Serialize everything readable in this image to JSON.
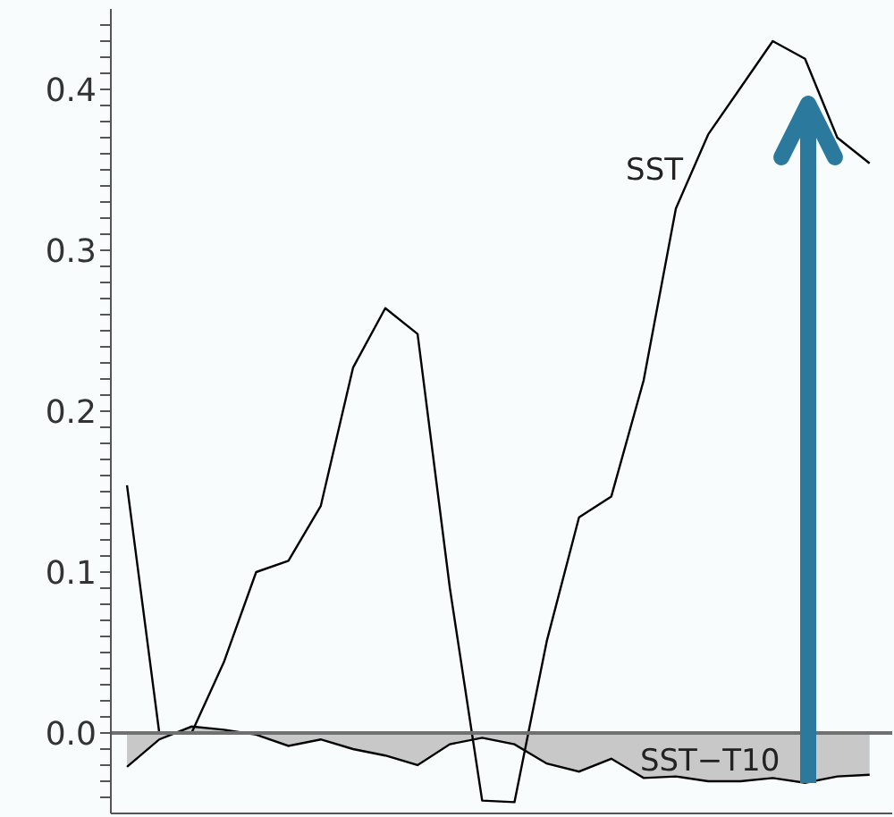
{
  "chart_data": {
    "type": "line",
    "categories": [
      null,
      null,
      null,
      null,
      null,
      null,
      null,
      null,
      null,
      null,
      null,
      null,
      null,
      null,
      null,
      null,
      null,
      null,
      null,
      null,
      null,
      null,
      null,
      null
    ],
    "series": [
      {
        "name": "SST",
        "color": "#000000",
        "values": [
          0.154,
          0.0,
          0.0,
          0.044,
          0.1,
          0.107,
          0.141,
          0.227,
          0.264,
          0.248,
          0.09,
          -0.042,
          -0.043,
          0.057,
          0.134,
          0.147,
          0.219,
          0.326,
          0.372,
          0.401,
          0.43,
          0.419,
          0.37,
          0.354
        ]
      },
      {
        "name": "SST−T10",
        "type": "area",
        "color": "#c8c8c8",
        "values": [
          -0.021,
          -0.004,
          0.004,
          0.002,
          -0.001,
          -0.008,
          -0.004,
          -0.01,
          -0.014,
          -0.02,
          -0.007,
          -0.003,
          -0.007,
          -0.019,
          -0.024,
          -0.016,
          -0.028,
          -0.027,
          -0.03,
          -0.03,
          -0.028,
          -0.031,
          -0.027,
          -0.026
        ]
      }
    ],
    "ylim": [
      -0.05,
      0.45
    ],
    "yticks": [
      {
        "value": -0.04,
        "label": null
      },
      {
        "value": -0.03,
        "label": null
      },
      {
        "value": -0.02,
        "label": null
      },
      {
        "value": -0.01,
        "label": null
      },
      {
        "value": 0,
        "label": "0.0"
      },
      {
        "value": 0.01,
        "label": null
      },
      {
        "value": 0.02,
        "label": null
      },
      {
        "value": 0.03,
        "label": null
      },
      {
        "value": 0.04,
        "label": null
      },
      {
        "value": 0.05,
        "label": null
      },
      {
        "value": 0.06,
        "label": null
      },
      {
        "value": 0.07,
        "label": null
      },
      {
        "value": 0.08,
        "label": null
      },
      {
        "value": 0.09,
        "label": null
      },
      0.1,
      {
        "value": 0.11,
        "label": null
      },
      {
        "value": 0.12,
        "label": null
      },
      {
        "value": 0.13,
        "label": null
      },
      {
        "value": 0.14,
        "label": null
      },
      {
        "value": 0.15,
        "label": null
      },
      {
        "value": 0.16,
        "label": null
      },
      {
        "value": 0.17,
        "label": null
      },
      {
        "value": 0.18,
        "label": null
      },
      {
        "value": 0.19,
        "label": null
      },
      0.2,
      {
        "value": 0.21,
        "label": null
      },
      {
        "value": 0.22,
        "label": null
      },
      {
        "value": 0.23,
        "label": null
      },
      {
        "value": 0.24,
        "label": null
      },
      {
        "value": 0.25,
        "label": null
      },
      {
        "value": 0.26,
        "label": null
      },
      {
        "value": 0.27,
        "label": null
      },
      {
        "value": 0.28,
        "label": null
      },
      {
        "value": 0.29,
        "label": null
      },
      0.3,
      {
        "value": 0.31,
        "label": null
      },
      {
        "value": 0.32,
        "label": null
      },
      {
        "value": 0.33,
        "label": null
      },
      {
        "value": 0.34,
        "label": null
      },
      {
        "value": 0.35,
        "label": null
      },
      {
        "value": 0.36,
        "label": null
      },
      {
        "value": 0.37,
        "label": null
      },
      {
        "value": 0.38,
        "label": null
      },
      {
        "value": 0.39,
        "label": null
      },
      0.4,
      {
        "value": 0.41,
        "label": null
      },
      {
        "value": 0.42,
        "label": null
      },
      {
        "value": 0.43,
        "label": null
      },
      {
        "value": 0.44,
        "label": null
      }
    ],
    "ref_lines": [
      {
        "axis": "y",
        "value": 0,
        "color": "#707070"
      }
    ],
    "tick_labels": "y",
    "marker": "none"
  }
}
